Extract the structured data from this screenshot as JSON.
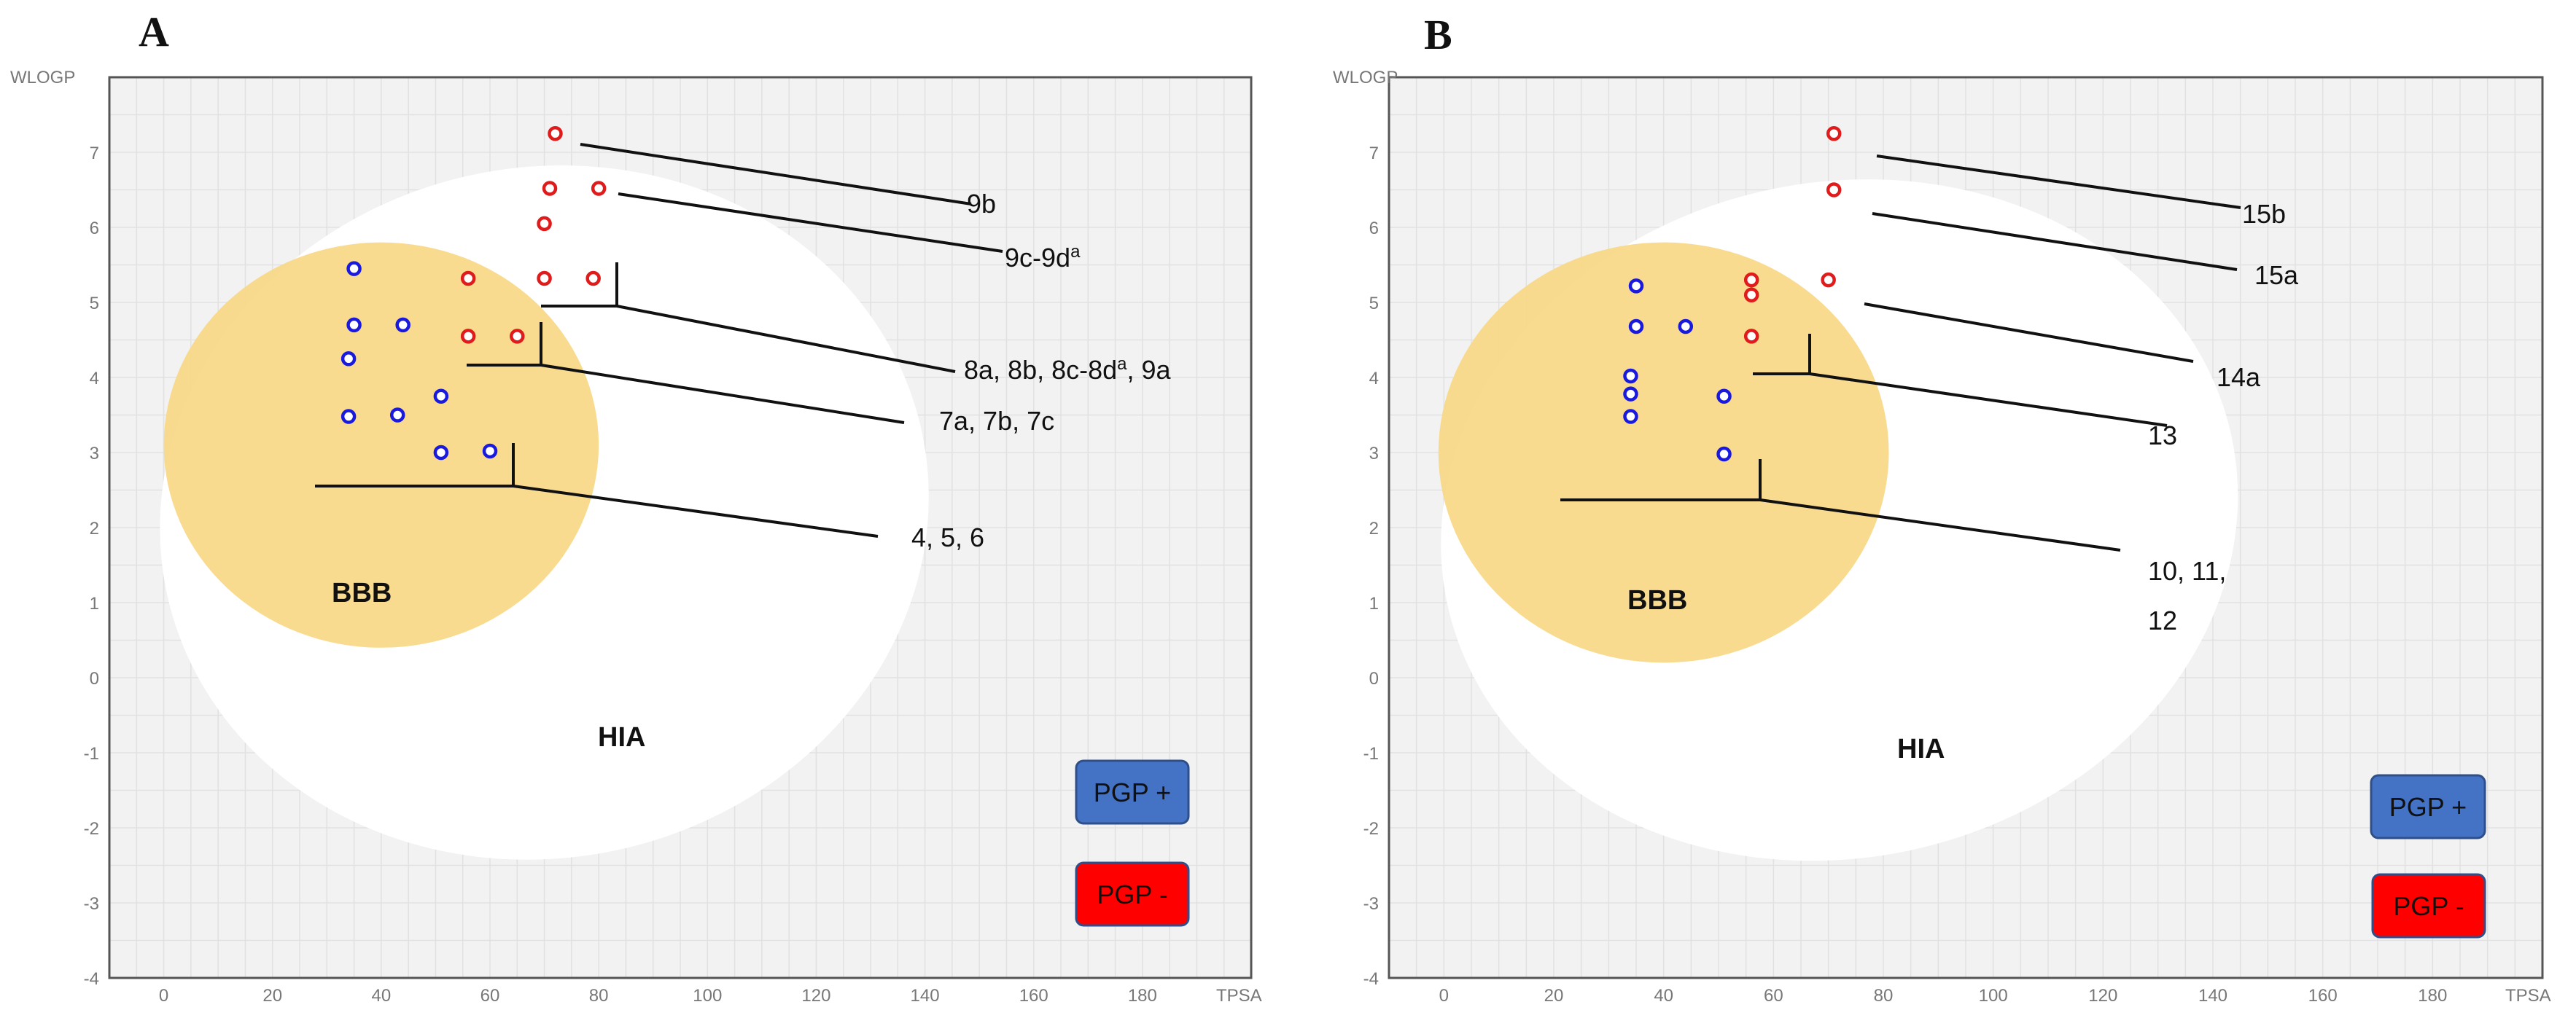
{
  "chart_data": [
    {
      "type": "scatter",
      "panel": "A",
      "xlabel": "TPSA",
      "ylabel": "WLOGP",
      "xlim": [
        -10,
        200
      ],
      "ylim": [
        -4,
        8
      ],
      "x_ticks": [
        0,
        20,
        40,
        60,
        80,
        100,
        120,
        140,
        160,
        180
      ],
      "y_ticks": [
        -4,
        -3,
        -2,
        -1,
        0,
        1,
        2,
        3,
        4,
        5,
        6,
        7
      ],
      "grid": true,
      "regions": [
        {
          "label": "HIA",
          "color": "#ffffff",
          "cx": 70,
          "cy": 2.2,
          "rx": 71,
          "ry": 4.6,
          "rotation": -12
        },
        {
          "label": "BBB",
          "color": "#f9d887",
          "cx": 40,
          "cy": 3.1,
          "rx": 40,
          "ry": 2.7,
          "rotation": 0
        }
      ],
      "series": [
        {
          "name": "PGP +",
          "color": "#1a1adf",
          "points": [
            [
              35,
              5.45
            ],
            [
              35,
              4.7
            ],
            [
              44,
              4.7
            ],
            [
              34,
              4.25
            ],
            [
              51,
              3.75
            ],
            [
              34,
              3.48
            ],
            [
              43,
              3.5
            ],
            [
              51,
              3.0
            ],
            [
              60,
              3.02
            ]
          ]
        },
        {
          "name": "PGP -",
          "color": "#e01b1b",
          "points": [
            [
              72,
              7.25
            ],
            [
              71,
              6.52
            ],
            [
              80,
              6.52
            ],
            [
              70,
              6.05
            ],
            [
              56,
              5.32
            ],
            [
              70,
              5.32
            ],
            [
              79,
              5.32
            ],
            [
              56,
              4.55
            ],
            [
              65,
              4.55
            ]
          ]
        }
      ],
      "callouts": [
        {
          "label": "9b"
        },
        {
          "label": "9c-9d",
          "sup": "a"
        },
        {
          "label": "8a, 8b, 8c-8d",
          "sup": "a",
          "suffix": ", 9a"
        },
        {
          "label": "7a, 7b, 7c"
        },
        {
          "label": "4, 5, 6"
        }
      ],
      "region_labels": {
        "bbb": "BBB",
        "hia": "HIA"
      },
      "legend": [
        {
          "label": "PGP +",
          "color": "#4472c4"
        },
        {
          "label": "PGP -",
          "color": "#ff0000"
        }
      ]
    },
    {
      "type": "scatter",
      "panel": "B",
      "xlabel": "TPSA",
      "ylabel": "WLOGP",
      "xlim": [
        -10,
        200
      ],
      "ylim": [
        -4,
        8
      ],
      "x_ticks": [
        0,
        20,
        40,
        60,
        80,
        100,
        120,
        140,
        160,
        180
      ],
      "y_ticks": [
        -4,
        -3,
        -2,
        -1,
        0,
        1,
        2,
        3,
        4,
        5,
        6,
        7
      ],
      "grid": true,
      "regions": [
        {
          "label": "HIA",
          "color": "#ffffff",
          "cx": 72,
          "cy": 2.1,
          "rx": 73,
          "ry": 4.5,
          "rotation": -12
        },
        {
          "label": "BBB",
          "color": "#f9d887",
          "cx": 40,
          "cy": 3.0,
          "rx": 41,
          "ry": 2.8,
          "rotation": 0
        }
      ],
      "series": [
        {
          "name": "PGP +",
          "color": "#1a1adf",
          "points": [
            [
              35,
              5.22
            ],
            [
              35,
              4.68
            ],
            [
              44,
              4.68
            ],
            [
              34,
              4.02
            ],
            [
              34,
              3.78
            ],
            [
              51,
              3.75
            ],
            [
              34,
              3.48
            ],
            [
              51,
              2.98
            ]
          ]
        },
        {
          "name": "PGP -",
          "color": "#e01b1b",
          "points": [
            [
              71,
              7.25
            ],
            [
              71,
              6.5
            ],
            [
              56,
              5.3
            ],
            [
              56,
              5.1
            ],
            [
              70,
              5.3
            ],
            [
              56,
              4.55
            ]
          ]
        }
      ],
      "callouts": [
        {
          "label": "15b"
        },
        {
          "label": "15a"
        },
        {
          "label": "14a"
        },
        {
          "label": "13"
        },
        {
          "label": "10, 11,",
          "line2": "12"
        }
      ],
      "region_labels": {
        "bbb": "BBB",
        "hia": "HIA"
      },
      "legend": [
        {
          "label": "PGP +",
          "color": "#4472c4"
        },
        {
          "label": "PGP -",
          "color": "#ff0000"
        }
      ]
    }
  ],
  "panel_letters": [
    "A",
    "B"
  ]
}
